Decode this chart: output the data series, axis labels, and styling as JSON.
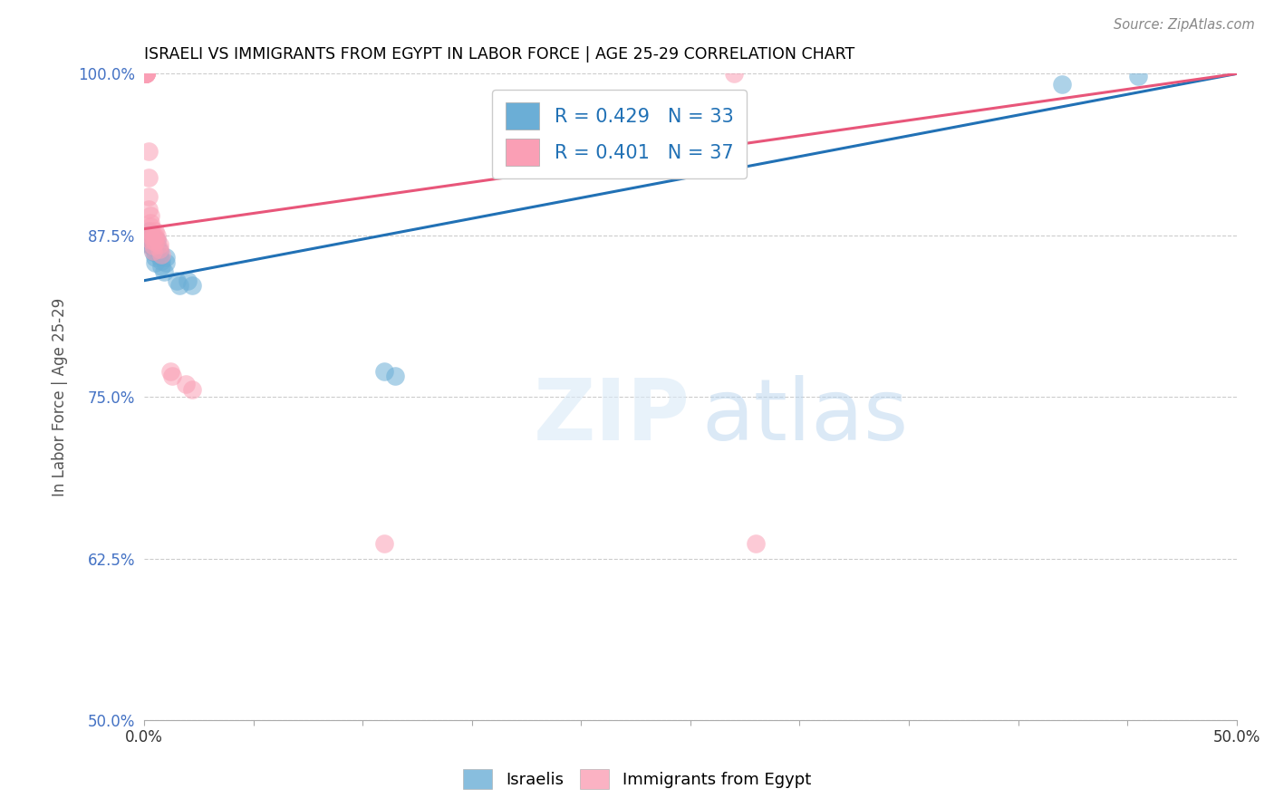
{
  "title": "ISRAELI VS IMMIGRANTS FROM EGYPT IN LABOR FORCE | AGE 25-29 CORRELATION CHART",
  "source": "Source: ZipAtlas.com",
  "ylabel": "In Labor Force | Age 25-29",
  "xlim": [
    0.0,
    0.5
  ],
  "ylim": [
    0.5,
    1.0
  ],
  "xtick_positions": [
    0.0,
    0.05,
    0.1,
    0.15,
    0.2,
    0.25,
    0.3,
    0.35,
    0.4,
    0.45,
    0.5
  ],
  "xtick_labels": [
    "0.0%",
    "",
    "",
    "",
    "",
    "",
    "",
    "",
    "",
    "",
    "50.0%"
  ],
  "ytick_positions": [
    0.5,
    0.625,
    0.75,
    0.875,
    1.0
  ],
  "ytick_labels": [
    "50.0%",
    "62.5%",
    "75.0%",
    "87.5%",
    "100.0%"
  ],
  "blue_R": 0.429,
  "blue_N": 33,
  "pink_R": 0.401,
  "pink_N": 37,
  "blue_color": "#6baed6",
  "pink_color": "#fa9fb5",
  "blue_line_color": "#2171b5",
  "pink_line_color": "#e8567a",
  "legend_label_blue": "Israelis",
  "legend_label_pink": "Immigrants from Egypt",
  "blue_x": [
    0.001,
    0.001,
    0.001,
    0.002,
    0.002,
    0.002,
    0.002,
    0.003,
    0.003,
    0.003,
    0.004,
    0.004,
    0.004,
    0.005,
    0.005,
    0.005,
    0.006,
    0.006,
    0.007,
    0.007,
    0.008,
    0.008,
    0.009,
    0.01,
    0.01,
    0.015,
    0.016,
    0.02,
    0.022,
    0.11,
    0.115,
    0.42,
    0.455
  ],
  "blue_y": [
    0.875,
    0.872,
    0.869,
    0.878,
    0.875,
    0.871,
    0.868,
    0.875,
    0.871,
    0.868,
    0.87,
    0.866,
    0.862,
    0.862,
    0.858,
    0.854,
    0.871,
    0.867,
    0.863,
    0.859,
    0.855,
    0.851,
    0.847,
    0.858,
    0.854,
    0.84,
    0.836,
    0.84,
    0.836,
    0.77,
    0.766,
    0.992,
    0.998
  ],
  "pink_x": [
    0.001,
    0.001,
    0.001,
    0.001,
    0.001,
    0.001,
    0.001,
    0.001,
    0.002,
    0.002,
    0.002,
    0.002,
    0.003,
    0.003,
    0.003,
    0.003,
    0.003,
    0.003,
    0.004,
    0.004,
    0.004,
    0.004,
    0.005,
    0.005,
    0.005,
    0.006,
    0.006,
    0.007,
    0.007,
    0.008,
    0.012,
    0.013,
    0.019,
    0.022,
    0.11,
    0.27,
    0.28
  ],
  "pink_y": [
    1.0,
    1.0,
    1.0,
    1.0,
    1.0,
    1.0,
    1.0,
    1.0,
    0.94,
    0.92,
    0.905,
    0.895,
    0.89,
    0.885,
    0.882,
    0.878,
    0.875,
    0.871,
    0.875,
    0.871,
    0.867,
    0.863,
    0.878,
    0.874,
    0.87,
    0.875,
    0.871,
    0.868,
    0.864,
    0.86,
    0.77,
    0.766,
    0.76,
    0.756,
    0.637,
    1.0,
    0.637
  ],
  "blue_line_x0": 0.0,
  "blue_line_y0": 0.84,
  "blue_line_x1": 0.5,
  "blue_line_y1": 1.0,
  "pink_line_x0": 0.0,
  "pink_line_y0": 0.88,
  "pink_line_x1": 0.5,
  "pink_line_y1": 1.0
}
